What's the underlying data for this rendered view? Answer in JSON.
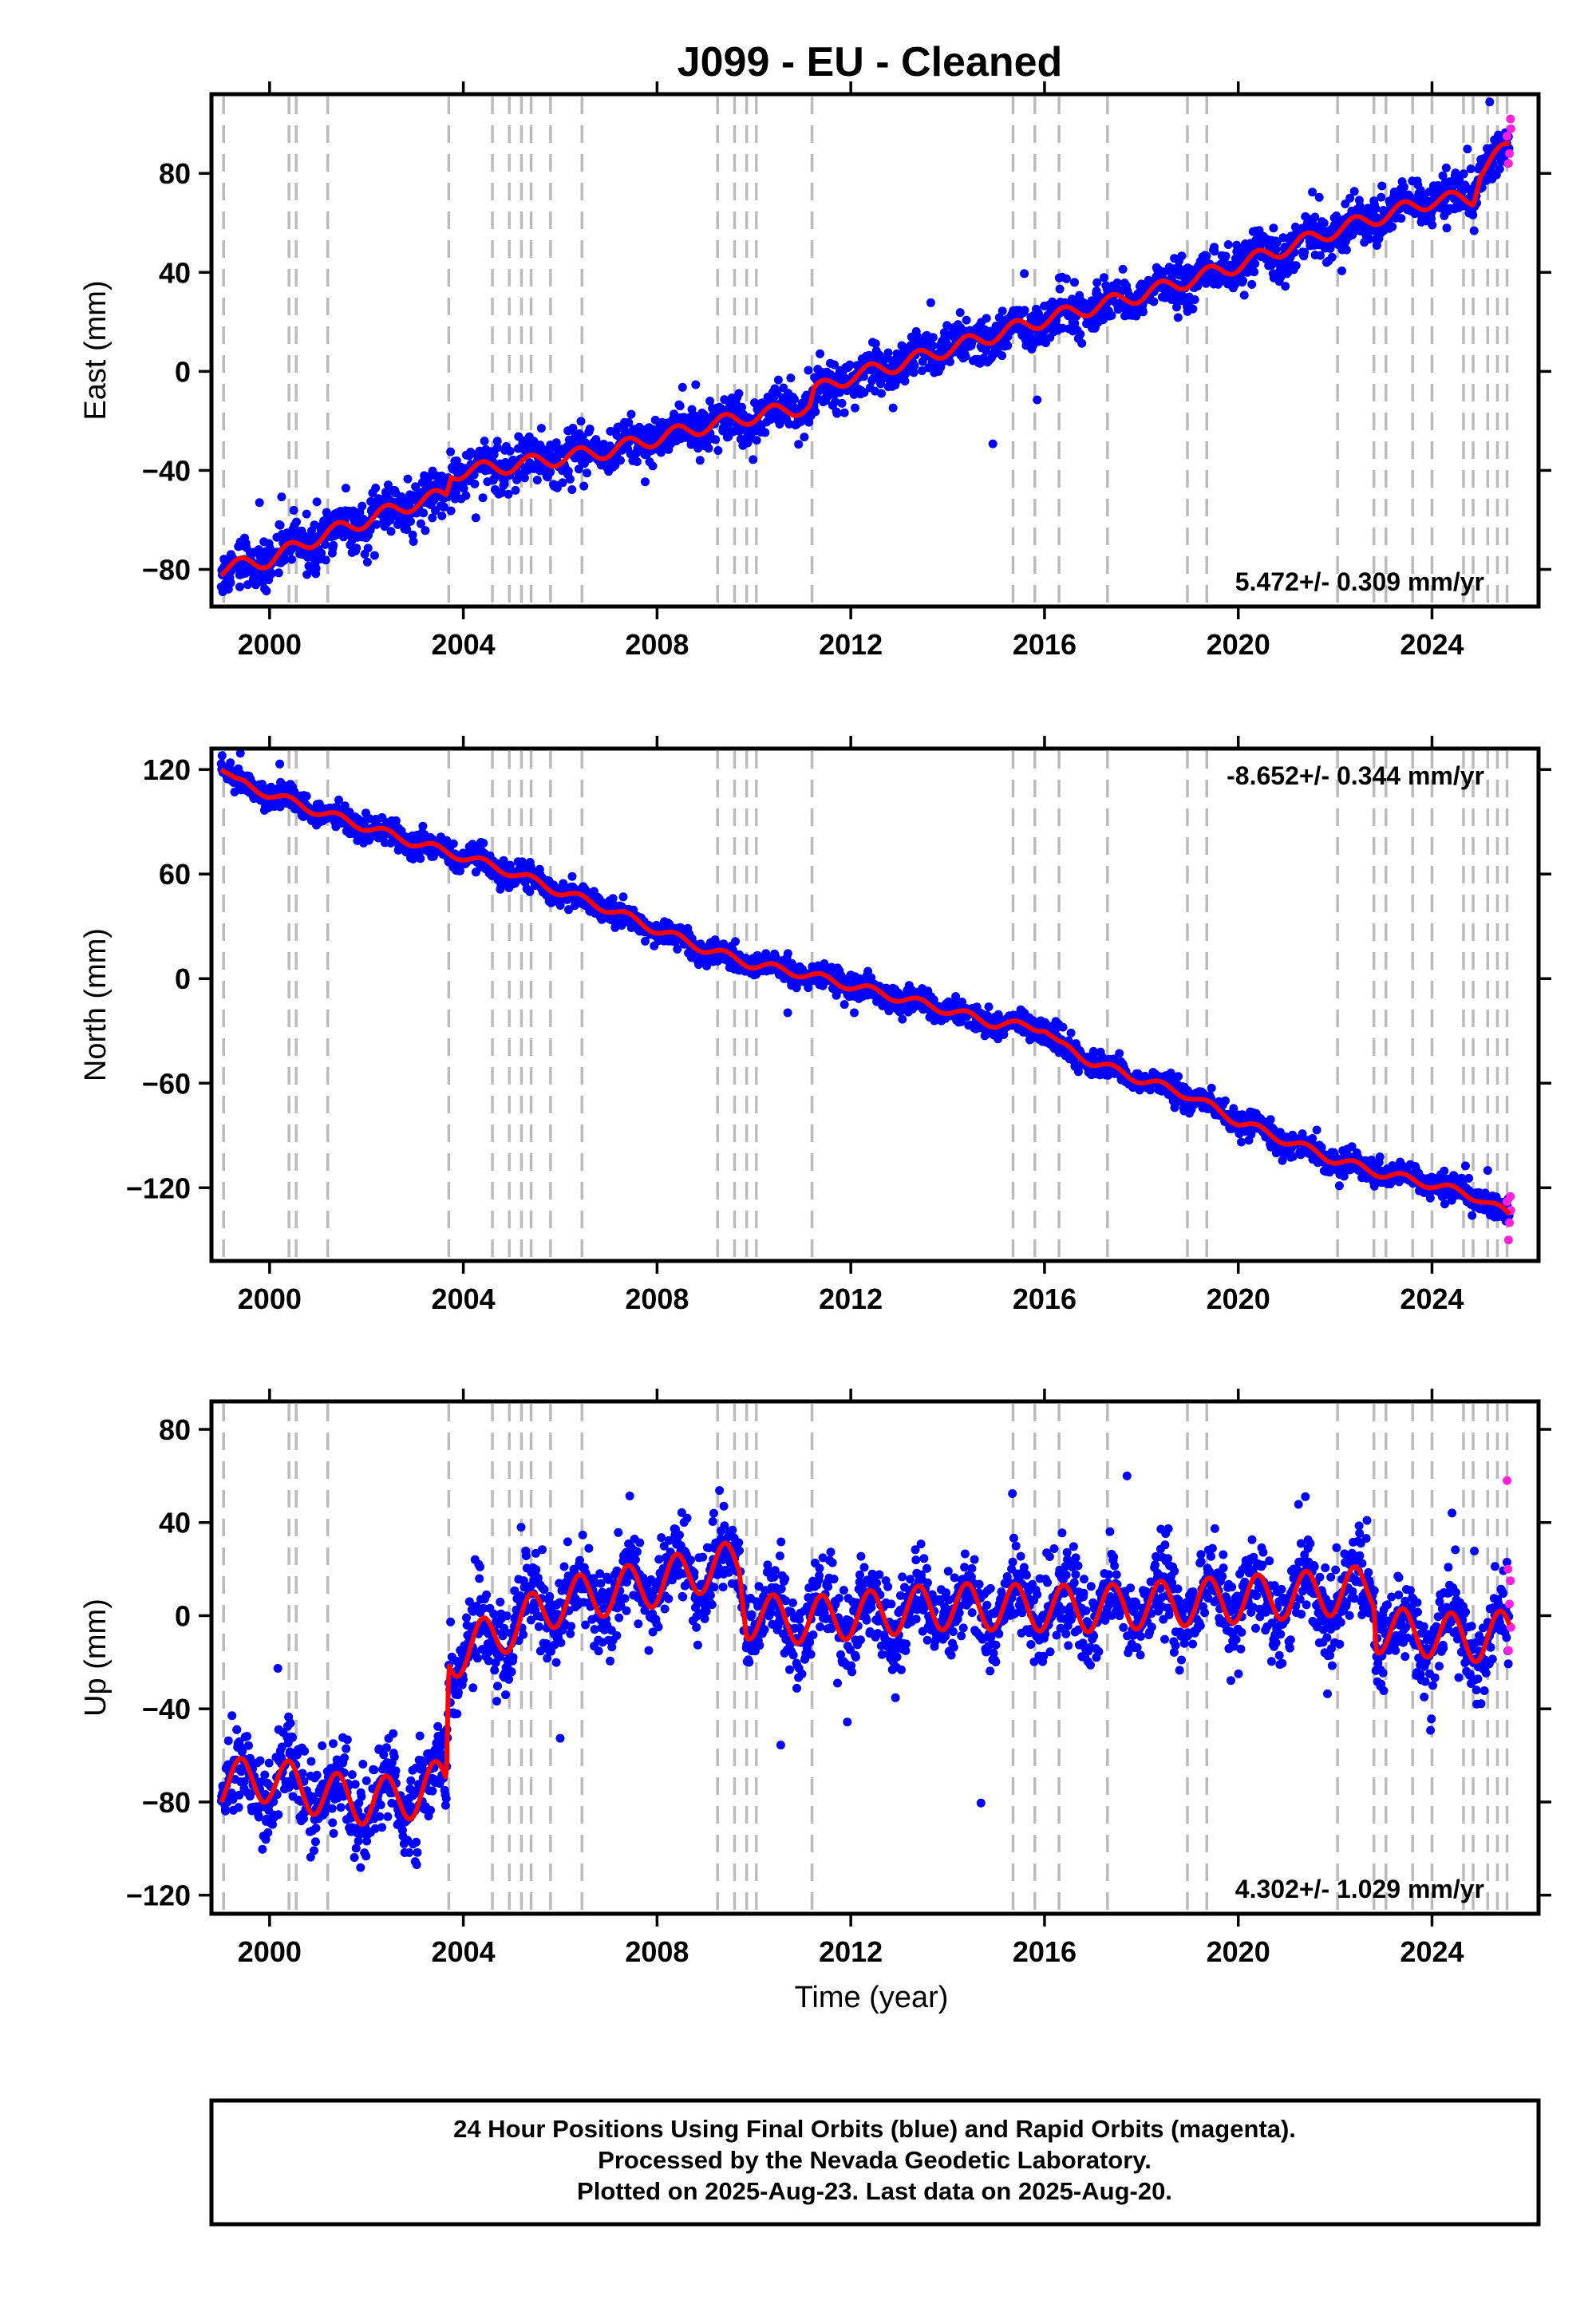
{
  "figure": {
    "title": "J099  - EU - Cleaned",
    "xlabel": "Time (year)",
    "colors": {
      "final": "#0000ff",
      "rapid": "#ff22dd",
      "model": "#ff0000",
      "event_lines": "#bbbbbb"
    },
    "footer_lines": [
      "24 Hour Positions Using Final Orbits (blue) and Rapid Orbits (magenta).",
      "Processed by the Nevada Geodetic Laboratory.",
      "Plotted on 2025-Aug-23. Last data on 2025-Aug-20."
    ]
  },
  "chart_data": [
    {
      "type": "scatter",
      "ylabel": "East (mm)",
      "xlim": [
        1998.8,
        2026.2
      ],
      "ylim": [
        -95,
        112
      ],
      "xticks": [
        2000,
        2004,
        2008,
        2012,
        2016,
        2020,
        2024
      ],
      "yticks": [
        -80,
        -40,
        0,
        40,
        80
      ],
      "grid": false,
      "rate_label": "5.472+/- 0.309 mm/yr",
      "rate_position": "bottom-right",
      "event_lines_x": [
        1999.05,
        2000.4,
        2000.55,
        2001.2,
        2003.7,
        2004.6,
        2004.95,
        2005.2,
        2005.4,
        2005.8,
        2006.45,
        2009.25,
        2009.6,
        2009.85,
        2010.05,
        2011.2,
        2015.35,
        2015.8,
        2016.3,
        2017.3,
        2018.95,
        2019.35,
        2022.05,
        2022.8,
        2023.05,
        2023.6,
        2024.0,
        2024.65,
        2024.85,
        2025.15,
        2025.35,
        2025.55
      ],
      "series": [
        {
          "x": [
            1999.0,
            2000.0,
            2001.0,
            2002.0,
            2003.0,
            2003.65,
            2003.75,
            2005.0,
            2006.0,
            2007.0,
            2008.0,
            2009.0,
            2010.0,
            2011.15,
            2011.25,
            2012.0,
            2013.0,
            2014.0,
            2015.0,
            2016.0,
            2017.0,
            2018.0,
            2019.0,
            2020.0,
            2021.0,
            2022.0,
            2023.0,
            2024.0,
            2024.85,
            2025.0,
            2025.4,
            2025.6
          ],
          "values": [
            -80,
            -76,
            -67,
            -60,
            -53,
            -50,
            -41,
            -38,
            -35,
            -32,
            -27,
            -22,
            -18,
            -14,
            -8,
            -2,
            3,
            9,
            15,
            21,
            26,
            31,
            37,
            43,
            50,
            57,
            63,
            69,
            70,
            81,
            88,
            91
          ],
          "amplitude": 3,
          "scatter": 4.5,
          "outlier_frac": 0.02
        }
      ],
      "rapid": [
        {
          "x": 2025.55,
          "y": 95
        },
        {
          "x": 2025.6,
          "y": 88
        },
        {
          "x": 2025.62,
          "y": 102
        },
        {
          "x": 2025.58,
          "y": 84
        },
        {
          "x": 2025.63,
          "y": 98
        }
      ]
    },
    {
      "type": "scatter",
      "ylabel": "North (mm)",
      "xlim": [
        1998.8,
        2026.2
      ],
      "ylim": [
        -162,
        132
      ],
      "xticks": [
        2000,
        2004,
        2008,
        2012,
        2016,
        2020,
        2024
      ],
      "yticks": [
        -120,
        -60,
        0,
        60,
        120
      ],
      "grid": false,
      "rate_label": "-8.652+/- 0.344 mm/yr",
      "rate_position": "top-right",
      "event_lines_x": [
        1999.05,
        2000.4,
        2000.55,
        2001.2,
        2003.7,
        2004.6,
        2004.95,
        2005.2,
        2005.4,
        2005.8,
        2006.45,
        2009.25,
        2009.6,
        2009.85,
        2010.05,
        2011.2,
        2015.35,
        2015.8,
        2016.3,
        2017.3,
        2018.95,
        2019.35,
        2022.05,
        2022.8,
        2023.05,
        2023.6,
        2024.0,
        2024.65,
        2024.85,
        2025.15,
        2025.35,
        2025.55
      ],
      "series": [
        {
          "x": [
            1999.0,
            1999.3,
            2000.0,
            2001.0,
            2002.0,
            2003.0,
            2004.0,
            2005.0,
            2006.0,
            2007.0,
            2008.0,
            2009.0,
            2010.0,
            2011.0,
            2012.0,
            2013.0,
            2014.0,
            2015.0,
            2016.0,
            2016.3,
            2017.0,
            2018.0,
            2019.0,
            2020.0,
            2021.0,
            2022.0,
            2023.0,
            2024.0,
            2025.0,
            2025.6
          ],
          "values": [
            122,
            113,
            106,
            96,
            87,
            78,
            70,
            61,
            50,
            40,
            28,
            17,
            8,
            3,
            -4,
            -11,
            -18,
            -26,
            -28,
            -38,
            -48,
            -58,
            -67,
            -82,
            -93,
            -104,
            -112,
            -118,
            -126,
            -136
          ],
          "amplitude": 2.5,
          "scatter": 3.5,
          "outlier_frac": 0.015
        }
      ],
      "rapid": [
        {
          "x": 2025.55,
          "y": -128
        },
        {
          "x": 2025.6,
          "y": -140
        },
        {
          "x": 2025.62,
          "y": -125
        },
        {
          "x": 2025.58,
          "y": -150
        },
        {
          "x": 2025.63,
          "y": -133
        }
      ]
    },
    {
      "type": "scatter",
      "ylabel": "Up (mm)",
      "xlim": [
        1998.8,
        2026.2
      ],
      "ylim": [
        -128,
        92
      ],
      "xticks": [
        2000,
        2004,
        2008,
        2012,
        2016,
        2020,
        2024
      ],
      "yticks": [
        -120,
        -80,
        -40,
        0,
        40,
        80
      ],
      "grid": false,
      "rate_label": "4.302+/- 1.029 mm/yr",
      "rate_position": "bottom-right",
      "event_lines_x": [
        1999.05,
        2000.4,
        2000.55,
        2001.2,
        2003.7,
        2004.6,
        2004.95,
        2005.2,
        2005.4,
        2005.8,
        2006.45,
        2009.25,
        2009.6,
        2009.85,
        2010.05,
        2011.2,
        2015.35,
        2015.8,
        2016.3,
        2017.3,
        2018.95,
        2019.35,
        2022.05,
        2022.8,
        2023.05,
        2023.6,
        2024.0,
        2024.65,
        2024.85,
        2025.15,
        2025.35,
        2025.55
      ],
      "series": [
        {
          "x": [
            1999.0,
            2000.0,
            2001.0,
            2002.0,
            2003.0,
            2003.65,
            2003.7,
            2004.5,
            2006.0,
            2008.0,
            2009.0,
            2009.7,
            2009.85,
            2011.0,
            2014.0,
            2017.0,
            2020.0,
            2022.0,
            2022.8,
            2022.85,
            2024.0,
            2025.0,
            2025.6
          ],
          "values": [
            -72,
            -70,
            -76,
            -80,
            -77,
            -70,
            -18,
            -10,
            6,
            14,
            20,
            22,
            0,
            -2,
            4,
            3,
            7,
            10,
            12,
            -6,
            -8,
            -10,
            -7
          ],
          "amplitude": 10,
          "scatter": 9,
          "outlier_frac": 0.03
        }
      ],
      "rapid": [
        {
          "x": 2025.55,
          "y": 58
        },
        {
          "x": 2025.6,
          "y": 5
        },
        {
          "x": 2025.62,
          "y": 15
        },
        {
          "x": 2025.58,
          "y": -15
        },
        {
          "x": 2025.63,
          "y": -5
        },
        {
          "x": 2025.57,
          "y": 20
        }
      ]
    }
  ]
}
